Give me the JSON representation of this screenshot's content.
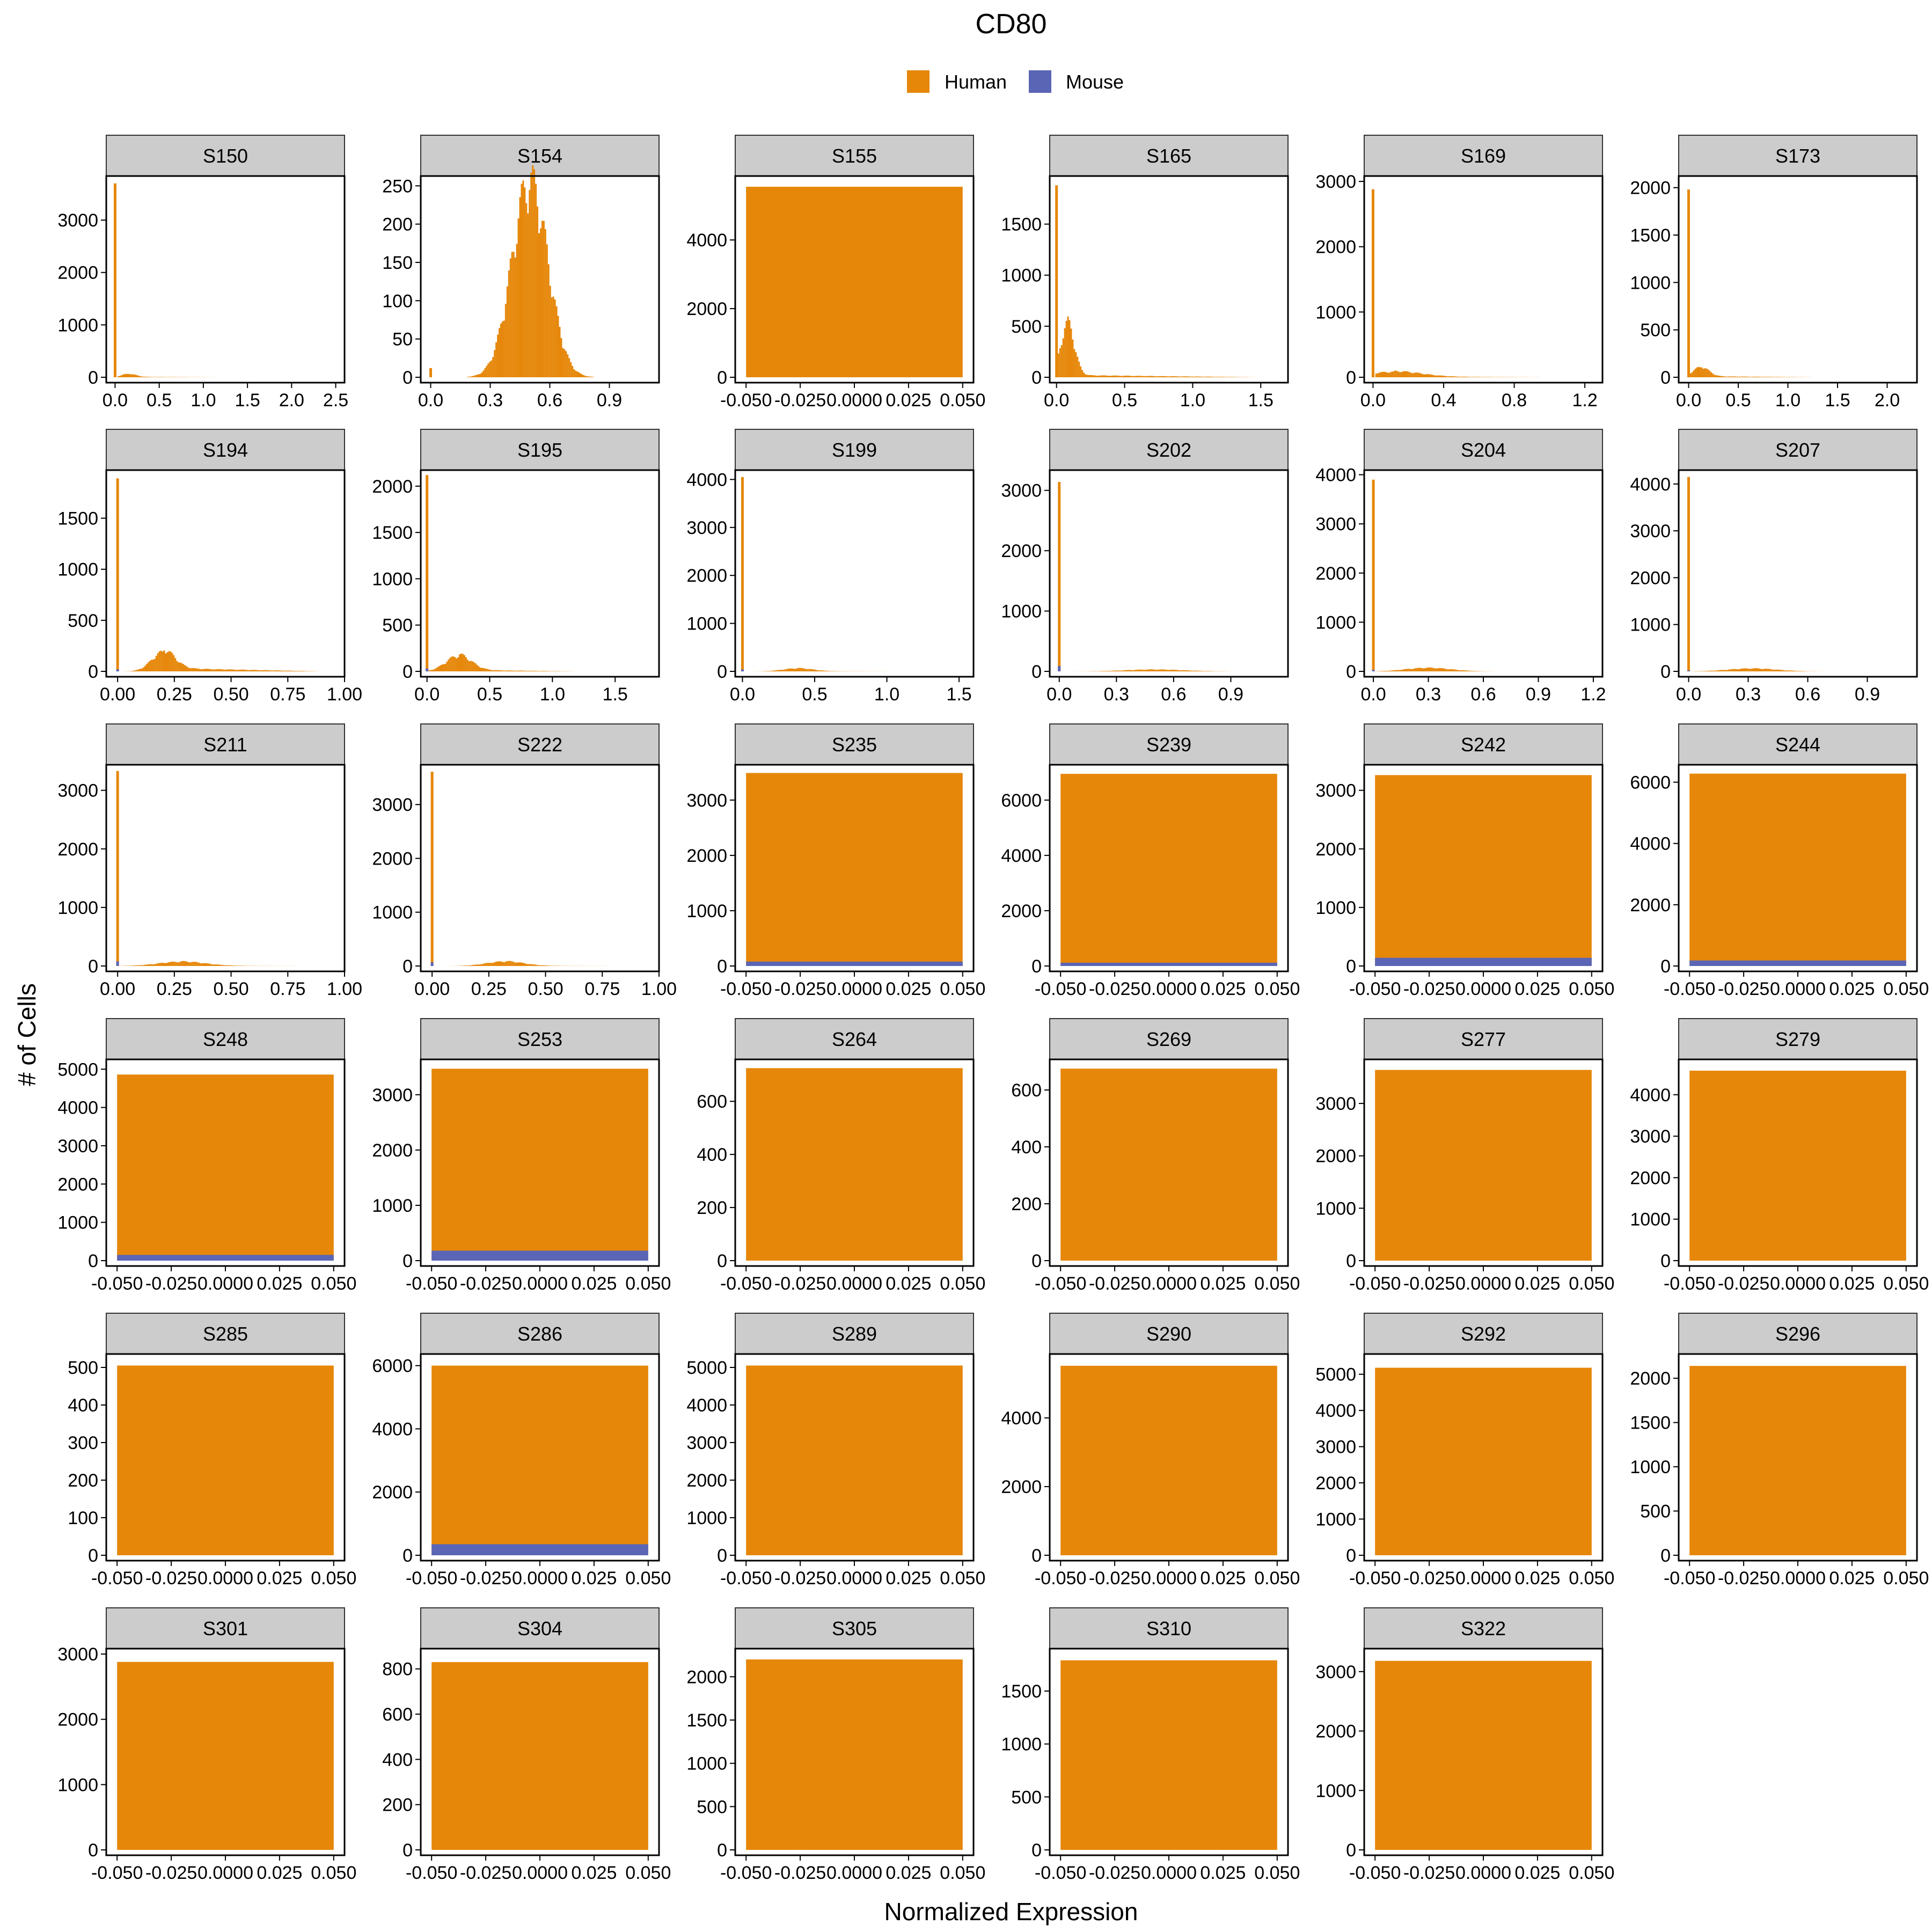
{
  "chart_data": {
    "type": "bar",
    "title": "CD80",
    "xlabel": "Normalized Expression",
    "ylabel": "# of Cells",
    "legend": {
      "position": "top",
      "entries": [
        "Human",
        "Mouse"
      ]
    },
    "colors": {
      "Human": "#E6870A",
      "Mouse": "#5B65B5",
      "strip_bg": "#CCCCCC",
      "panel_border": "#000000"
    },
    "panels": [
      {
        "label": "S150",
        "mode": "hist",
        "xlim": [
          -0.1,
          2.6
        ],
        "xticks": [
          0,
          0.5,
          1,
          1.5,
          2,
          2.5
        ],
        "xtick_labels": [
          "0.0",
          "0.5",
          "1.0",
          "1.5",
          "2.0",
          "2.5"
        ],
        "ylim": [
          0,
          3800
        ],
        "yticks": [
          0,
          1000,
          2000,
          3000
        ],
        "zero_count": 3700,
        "peak_center": 0.15,
        "peak_height": 60,
        "peak_width": 0.08,
        "tail_height": 8,
        "tail_end": 1.2,
        "mouse_zero": 0
      },
      {
        "label": "S154",
        "mode": "hist",
        "xlim": [
          -0.05,
          1.15
        ],
        "xticks": [
          0,
          0.3,
          0.6,
          0.9
        ],
        "xtick_labels": [
          "0.0",
          "0.3",
          "0.6",
          "0.9"
        ],
        "ylim": [
          0,
          260
        ],
        "yticks": [
          0,
          50,
          100,
          150,
          200,
          250
        ],
        "zero_count": 12,
        "peak_center": 0.5,
        "peak_height": 245,
        "peak_width": 0.09,
        "tail_height": 0,
        "tail_end": 1.05,
        "mouse_zero": 0
      },
      {
        "label": "S155",
        "mode": "flat",
        "ylim": [
          0,
          5800
        ],
        "yticks": [
          0,
          2000,
          4000
        ],
        "human_total": 5550,
        "mouse_total": 0
      },
      {
        "label": "S165",
        "mode": "hist",
        "xlim": [
          -0.05,
          1.7
        ],
        "xticks": [
          0,
          0.5,
          1,
          1.5
        ],
        "xtick_labels": [
          "0.0",
          "0.5",
          "1.0",
          "1.5"
        ],
        "ylim": [
          0,
          1950
        ],
        "yticks": [
          0,
          500,
          1000,
          1500
        ],
        "zero_count": 1880,
        "peak_center": 0.08,
        "peak_height": 500,
        "peak_width": 0.05,
        "tail_height": 20,
        "tail_end": 1.5,
        "mouse_zero": 0
      },
      {
        "label": "S169",
        "mode": "hist",
        "xlim": [
          -0.05,
          1.3
        ],
        "xticks": [
          0,
          0.4,
          0.8,
          1.2
        ],
        "xtick_labels": [
          "0.0",
          "0.4",
          "0.8",
          "1.2"
        ],
        "ylim": [
          0,
          3050
        ],
        "yticks": [
          0,
          1000,
          2000,
          3000
        ],
        "zero_count": 2880,
        "peak_center": 0.12,
        "peak_height": 80,
        "peak_width": 0.15,
        "tail_height": 10,
        "tail_end": 1.0,
        "mouse_zero": 0
      },
      {
        "label": "S173",
        "mode": "hist",
        "xlim": [
          -0.1,
          2.3
        ],
        "xticks": [
          0,
          0.5,
          1,
          1.5,
          2
        ],
        "xtick_labels": [
          "0.0",
          "0.5",
          "1.0",
          "1.5",
          "2.0"
        ],
        "ylim": [
          0,
          2100
        ],
        "yticks": [
          0,
          500,
          1000,
          1500,
          2000
        ],
        "zero_count": 1980,
        "peak_center": 0.12,
        "peak_height": 100,
        "peak_width": 0.08,
        "tail_height": 10,
        "tail_end": 1.3,
        "mouse_zero": 0
      },
      {
        "label": "S194",
        "mode": "hist",
        "xlim": [
          -0.05,
          1.0
        ],
        "xticks": [
          0,
          0.25,
          0.5,
          0.75,
          1
        ],
        "xtick_labels": [
          "0.00",
          "0.25",
          "0.50",
          "0.75",
          "1.00"
        ],
        "ylim": [
          0,
          1950
        ],
        "yticks": [
          0,
          500,
          1000,
          1500
        ],
        "zero_count": 1890,
        "peak_center": 0.2,
        "peak_height": 180,
        "peak_width": 0.05,
        "tail_height": 30,
        "tail_end": 0.9,
        "mouse_zero": 20
      },
      {
        "label": "S195",
        "mode": "hist",
        "xlim": [
          -0.05,
          1.85
        ],
        "xticks": [
          0,
          0.5,
          1,
          1.5
        ],
        "xtick_labels": [
          "0.0",
          "0.5",
          "1.0",
          "1.5"
        ],
        "ylim": [
          0,
          2150
        ],
        "yticks": [
          0,
          500,
          1000,
          1500,
          2000
        ],
        "zero_count": 2120,
        "peak_center": 0.25,
        "peak_height": 160,
        "peak_width": 0.1,
        "tail_height": 15,
        "tail_end": 1.2,
        "mouse_zero": 30
      },
      {
        "label": "S199",
        "mode": "hist",
        "xlim": [
          -0.05,
          1.6
        ],
        "xticks": [
          0,
          0.5,
          1,
          1.5
        ],
        "xtick_labels": [
          "0.0",
          "0.5",
          "1.0",
          "1.5"
        ],
        "ylim": [
          0,
          4150
        ],
        "yticks": [
          0,
          1000,
          2000,
          3000,
          4000
        ],
        "zero_count": 4050,
        "peak_center": 0.38,
        "peak_height": 60,
        "peak_width": 0.1,
        "tail_height": 5,
        "tail_end": 1.1,
        "mouse_zero": 40
      },
      {
        "label": "S202",
        "mode": "hist",
        "xlim": [
          -0.05,
          1.2
        ],
        "xticks": [
          0,
          0.3,
          0.6,
          0.9
        ],
        "xtick_labels": [
          "0.0",
          "0.3",
          "0.6",
          "0.9"
        ],
        "ylim": [
          0,
          3300
        ],
        "yticks": [
          0,
          1000,
          2000,
          3000
        ],
        "zero_count": 3140,
        "peak_center": 0.5,
        "peak_height": 30,
        "peak_width": 0.15,
        "tail_height": 0,
        "tail_end": 0.9,
        "mouse_zero": 90
      },
      {
        "label": "S204",
        "mode": "hist",
        "xlim": [
          -0.05,
          1.25
        ],
        "xticks": [
          0,
          0.3,
          0.6,
          0.9,
          1.2
        ],
        "xtick_labels": [
          "0.0",
          "0.3",
          "0.6",
          "0.9",
          "1.2"
        ],
        "ylim": [
          0,
          4050
        ],
        "yticks": [
          0,
          1000,
          2000,
          3000,
          4000
        ],
        "zero_count": 3900,
        "peak_center": 0.3,
        "peak_height": 70,
        "peak_width": 0.12,
        "tail_height": 0,
        "tail_end": 0.9,
        "mouse_zero": 30
      },
      {
        "label": "S207",
        "mode": "hist",
        "xlim": [
          -0.05,
          1.15
        ],
        "xticks": [
          0,
          0.3,
          0.6,
          0.9
        ],
        "xtick_labels": [
          "0.0",
          "0.3",
          "0.6",
          "0.9"
        ],
        "ylim": [
          0,
          4250
        ],
        "yticks": [
          0,
          1000,
          2000,
          3000,
          4000
        ],
        "zero_count": 4150,
        "peak_center": 0.32,
        "peak_height": 60,
        "peak_width": 0.12,
        "tail_height": 0,
        "tail_end": 0.85,
        "mouse_zero": 20
      },
      {
        "label": "S211",
        "mode": "hist",
        "xlim": [
          -0.05,
          1.0
        ],
        "xticks": [
          0,
          0.25,
          0.5,
          0.75,
          1
        ],
        "xtick_labels": [
          "0.00",
          "0.25",
          "0.50",
          "0.75",
          "1.00"
        ],
        "ylim": [
          0,
          3400
        ],
        "yticks": [
          0,
          1000,
          2000,
          3000
        ],
        "zero_count": 3330,
        "peak_center": 0.28,
        "peak_height": 70,
        "peak_width": 0.1,
        "tail_height": 5,
        "tail_end": 0.85,
        "mouse_zero": 80
      },
      {
        "label": "S222",
        "mode": "hist",
        "xlim": [
          -0.05,
          1.0
        ],
        "xticks": [
          0,
          0.25,
          0.5,
          0.75,
          1
        ],
        "xtick_labels": [
          "0.00",
          "0.25",
          "0.50",
          "0.75",
          "1.00"
        ],
        "ylim": [
          0,
          3700
        ],
        "yticks": [
          0,
          1000,
          2000,
          3000
        ],
        "zero_count": 3610,
        "peak_center": 0.32,
        "peak_height": 80,
        "peak_width": 0.08,
        "tail_height": 5,
        "tail_end": 0.85,
        "mouse_zero": 70
      },
      {
        "label": "S235",
        "mode": "flat",
        "ylim": [
          0,
          3600
        ],
        "yticks": [
          0,
          1000,
          2000,
          3000
        ],
        "human_total": 3490,
        "mouse_total": 80
      },
      {
        "label": "S239",
        "mode": "flat",
        "ylim": [
          0,
          7200
        ],
        "yticks": [
          0,
          2000,
          4000,
          6000
        ],
        "human_total": 6950,
        "mouse_total": 120
      },
      {
        "label": "S242",
        "mode": "flat",
        "ylim": [
          0,
          3400
        ],
        "yticks": [
          0,
          1000,
          2000,
          3000
        ],
        "human_total": 3260,
        "mouse_total": 140
      },
      {
        "label": "S244",
        "mode": "flat",
        "ylim": [
          0,
          6500
        ],
        "yticks": [
          0,
          2000,
          4000,
          6000
        ],
        "human_total": 6280,
        "mouse_total": 180
      },
      {
        "label": "S248",
        "mode": "flat",
        "ylim": [
          0,
          5200
        ],
        "yticks": [
          0,
          1000,
          2000,
          3000,
          4000,
          5000
        ],
        "human_total": 4860,
        "mouse_total": 150
      },
      {
        "label": "S253",
        "mode": "flat",
        "ylim": [
          0,
          3600
        ],
        "yticks": [
          0,
          1000,
          2000,
          3000
        ],
        "human_total": 3470,
        "mouse_total": 180
      },
      {
        "label": "S264",
        "mode": "flat",
        "ylim": [
          0,
          750
        ],
        "yticks": [
          0,
          200,
          400,
          600
        ],
        "human_total": 725,
        "mouse_total": 0
      },
      {
        "label": "S269",
        "mode": "flat",
        "ylim": [
          0,
          700
        ],
        "yticks": [
          0,
          200,
          400,
          600
        ],
        "human_total": 675,
        "mouse_total": 0
      },
      {
        "label": "S277",
        "mode": "flat",
        "ylim": [
          0,
          3800
        ],
        "yticks": [
          0,
          1000,
          2000,
          3000
        ],
        "human_total": 3640,
        "mouse_total": 0
      },
      {
        "label": "S279",
        "mode": "flat",
        "ylim": [
          0,
          4800
        ],
        "yticks": [
          0,
          1000,
          2000,
          3000,
          4000
        ],
        "human_total": 4580,
        "mouse_total": 0
      },
      {
        "label": "S285",
        "mode": "flat",
        "ylim": [
          0,
          530
        ],
        "yticks": [
          0,
          100,
          200,
          300,
          400,
          500
        ],
        "human_total": 505,
        "mouse_total": 0
      },
      {
        "label": "S286",
        "mode": "flat",
        "ylim": [
          0,
          6300
        ],
        "yticks": [
          0,
          2000,
          4000,
          6000
        ],
        "human_total": 6000,
        "mouse_total": 350
      },
      {
        "label": "S289",
        "mode": "flat",
        "ylim": [
          0,
          5300
        ],
        "yticks": [
          0,
          1000,
          2000,
          3000,
          4000,
          5000
        ],
        "human_total": 5050,
        "mouse_total": 0
      },
      {
        "label": "S290",
        "mode": "flat",
        "ylim": [
          0,
          5800
        ],
        "yticks": [
          0,
          2000,
          4000
        ],
        "human_total": 5520,
        "mouse_total": 0
      },
      {
        "label": "S292",
        "mode": "flat",
        "ylim": [
          0,
          5500
        ],
        "yticks": [
          0,
          1000,
          2000,
          3000,
          4000,
          5000
        ],
        "human_total": 5180,
        "mouse_total": 0
      },
      {
        "label": "S296",
        "mode": "flat",
        "ylim": [
          0,
          2250
        ],
        "yticks": [
          0,
          500,
          1000,
          1500,
          2000
        ],
        "human_total": 2140,
        "mouse_total": 0
      },
      {
        "label": "S301",
        "mode": "flat",
        "ylim": [
          0,
          3050
        ],
        "yticks": [
          0,
          1000,
          2000,
          3000
        ],
        "human_total": 2880,
        "mouse_total": 0
      },
      {
        "label": "S304",
        "mode": "flat",
        "ylim": [
          0,
          880
        ],
        "yticks": [
          0,
          200,
          400,
          600,
          800
        ],
        "human_total": 830,
        "mouse_total": 0
      },
      {
        "label": "S305",
        "mode": "flat",
        "ylim": [
          0,
          2300
        ],
        "yticks": [
          0,
          500,
          1000,
          1500,
          2000
        ],
        "human_total": 2200,
        "mouse_total": 0
      },
      {
        "label": "S310",
        "mode": "flat",
        "ylim": [
          0,
          1880
        ],
        "yticks": [
          0,
          500,
          1000,
          1500
        ],
        "human_total": 1790,
        "mouse_total": 0
      },
      {
        "label": "S322",
        "mode": "flat",
        "ylim": [
          0,
          3350
        ],
        "yticks": [
          0,
          1000,
          2000,
          3000
        ],
        "human_total": 3180,
        "mouse_total": 0
      }
    ],
    "flat_xlim": [
      -0.055,
      0.055
    ],
    "flat_xticks": [
      -0.05,
      -0.025,
      0,
      0.025,
      0.05
    ],
    "flat_xtick_labels": [
      "-0.050",
      "-0.025",
      "0.0000",
      "0.025",
      "0.050"
    ],
    "grid": false
  }
}
